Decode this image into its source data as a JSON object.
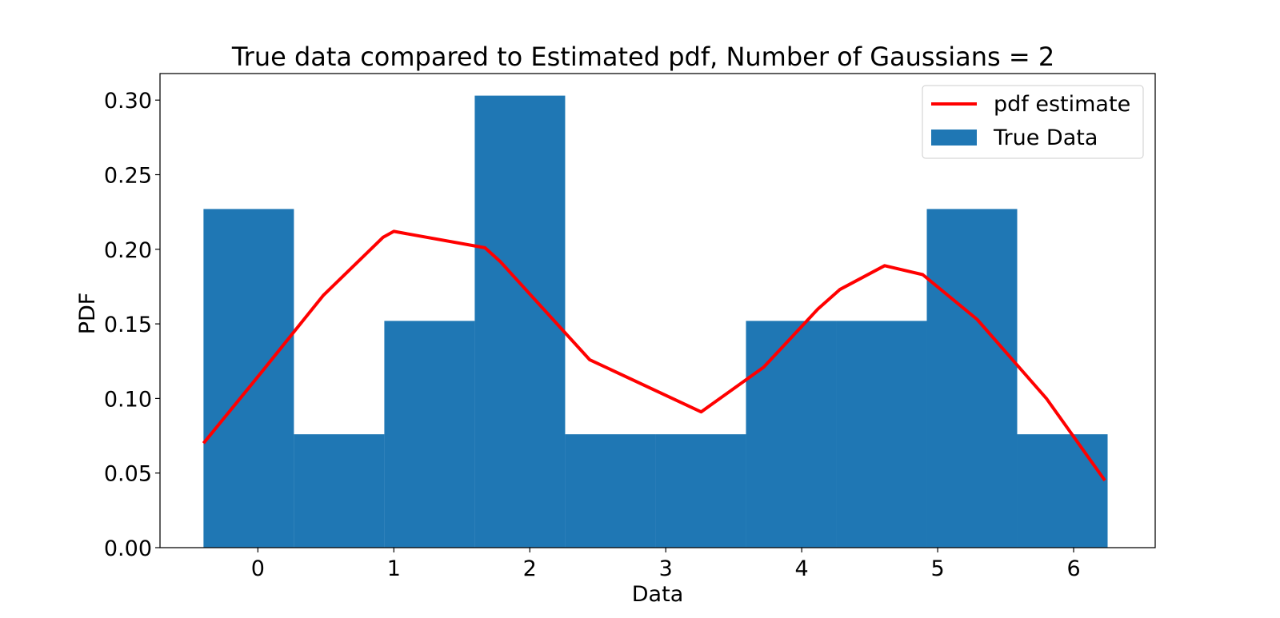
{
  "chart_data": {
    "type": "bar",
    "title": "True data compared to Estimated pdf, Number of Gaussians = 2",
    "xlabel": "Data",
    "ylabel": "PDF",
    "xlim": [
      -0.72,
      6.6
    ],
    "ylim": [
      0,
      0.3178
    ],
    "xticks": [
      0,
      1,
      2,
      3,
      4,
      5,
      6
    ],
    "yticks": [
      0.0,
      0.05,
      0.1,
      0.15,
      0.2,
      0.25,
      0.3
    ],
    "ytick_labels": [
      "0.00",
      "0.05",
      "0.10",
      "0.15",
      "0.20",
      "0.25",
      "0.30"
    ],
    "grid": false,
    "legend_position": "top-right",
    "histogram": {
      "name": "True Data",
      "color": "#1f77b4",
      "bin_edges": [
        -0.4,
        0.265,
        0.93,
        1.595,
        2.26,
        2.925,
        3.59,
        4.255,
        4.92,
        5.585,
        6.25
      ],
      "values": [
        0.227,
        0.076,
        0.152,
        0.303,
        0.076,
        0.076,
        0.152,
        0.152,
        0.227,
        0.076
      ]
    },
    "series": [
      {
        "name": "pdf estimate",
        "type": "line",
        "color": "#ff0000",
        "x": [
          -0.4,
          0.03,
          0.48,
          0.92,
          1.0,
          1.67,
          1.78,
          2.44,
          3.26,
          3.72,
          4.12,
          4.28,
          4.61,
          4.89,
          5.29,
          5.8,
          6.23
        ],
        "y": [
          0.07,
          0.118,
          0.169,
          0.208,
          0.212,
          0.201,
          0.192,
          0.126,
          0.091,
          0.121,
          0.16,
          0.173,
          0.189,
          0.183,
          0.153,
          0.1,
          0.045
        ]
      }
    ]
  }
}
